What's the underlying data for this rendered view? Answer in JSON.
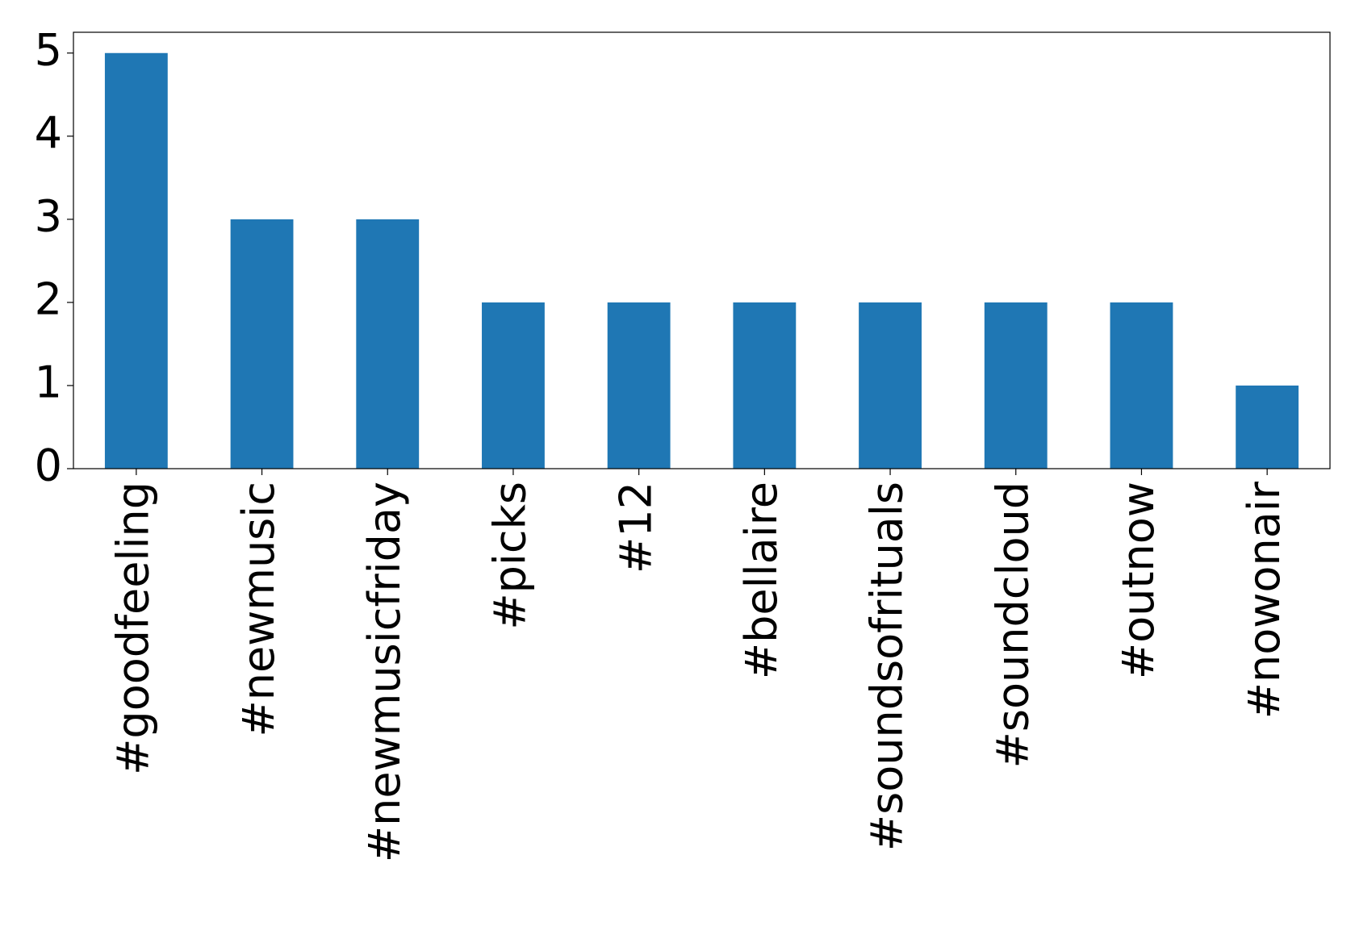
{
  "chart_data": {
    "type": "bar",
    "categories": [
      "#goodfeeling",
      "#newmusic",
      "#newmusicfriday",
      "#picks",
      "#12",
      "#bellaire",
      "#soundsofrituals",
      "#soundcloud",
      "#outnow",
      "#nowonair"
    ],
    "values": [
      5,
      3,
      3,
      2,
      2,
      2,
      2,
      2,
      2,
      1
    ],
    "color": "#1f77b4",
    "ylim": [
      0,
      5.25
    ],
    "yticks": [
      0,
      1,
      2,
      3,
      4,
      5
    ],
    "grid": false
  }
}
